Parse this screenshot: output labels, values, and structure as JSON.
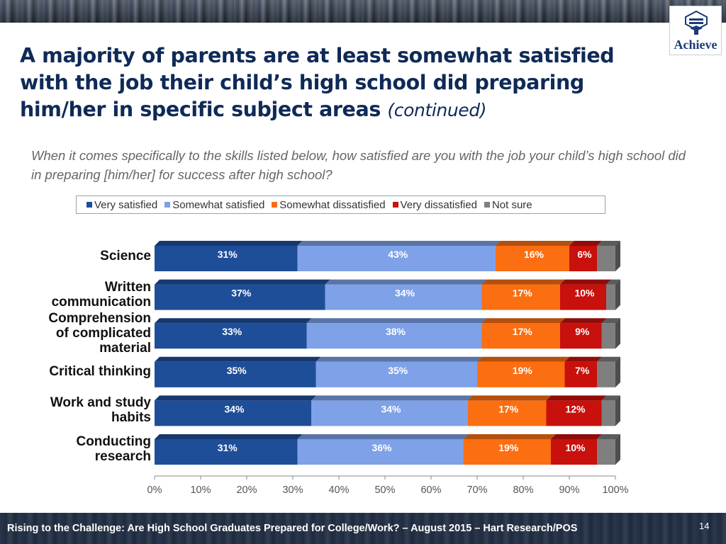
{
  "title": "A majority of parents are at least somewhat satisfied with the job their child’s high school did preparing him/her in specific subject areas",
  "title_suffix": "(continued)",
  "question": "When it comes specifically to the skills listed below, how satisfied are you with the job your child’s high school did in preparing [him/her] for success after high school?",
  "logo_text": "Achieve",
  "footer": "Rising to the Challenge:  Are High School Graduates Prepared for College/Work? – August 2015 – Hart Research/POS",
  "page_number": "14",
  "colors": {
    "very_satisfied": "#1f4e99",
    "somewhat_satisfied": "#7ea1e8",
    "somewhat_dissatisfied": "#fb6e12",
    "very_dissatisfied": "#c8100d",
    "not_sure": "#7f7f7f"
  },
  "chart_data": {
    "type": "bar",
    "orientation": "horizontal",
    "stacked": true,
    "categories": [
      [
        "Science"
      ],
      [
        "Written",
        "communication"
      ],
      [
        "Comprehension",
        "of complicated",
        "material"
      ],
      [
        "Critical thinking"
      ],
      [
        "Work and study",
        "habits"
      ],
      [
        "Conducting",
        "research"
      ]
    ],
    "series": [
      {
        "name": "Very satisfied",
        "color": "#1f4e99",
        "values": [
          31,
          37,
          33,
          35,
          34,
          31
        ],
        "labels": [
          "31%",
          "37%",
          "33%",
          "35%",
          "34%",
          "31%"
        ]
      },
      {
        "name": "Somewhat satisfied",
        "color": "#7ea1e8",
        "values": [
          43,
          34,
          38,
          35,
          34,
          36
        ],
        "labels": [
          "43%",
          "34%",
          "38%",
          "35%",
          "34%",
          "36%"
        ]
      },
      {
        "name": "Somewhat dissatisfied",
        "color": "#fb6e12",
        "values": [
          16,
          17,
          17,
          19,
          17,
          19
        ],
        "labels": [
          "16%",
          "17%",
          "17%",
          "19%",
          "17%",
          "19%"
        ]
      },
      {
        "name": "Very dissatisfied",
        "color": "#c8100d",
        "values": [
          6,
          10,
          9,
          7,
          12,
          10
        ],
        "labels": [
          "6%",
          "10%",
          "9%",
          "7%",
          "12%",
          "10%"
        ]
      },
      {
        "name": "Not sure",
        "color": "#7f7f7f",
        "values": [
          4,
          2,
          3,
          4,
          3,
          4
        ],
        "labels": []
      }
    ],
    "x_ticks": [
      "0%",
      "10%",
      "20%",
      "30%",
      "40%",
      "50%",
      "60%",
      "70%",
      "80%",
      "90%",
      "100%"
    ],
    "xlim": [
      0,
      100
    ],
    "legend_position": "top",
    "grid": false
  }
}
